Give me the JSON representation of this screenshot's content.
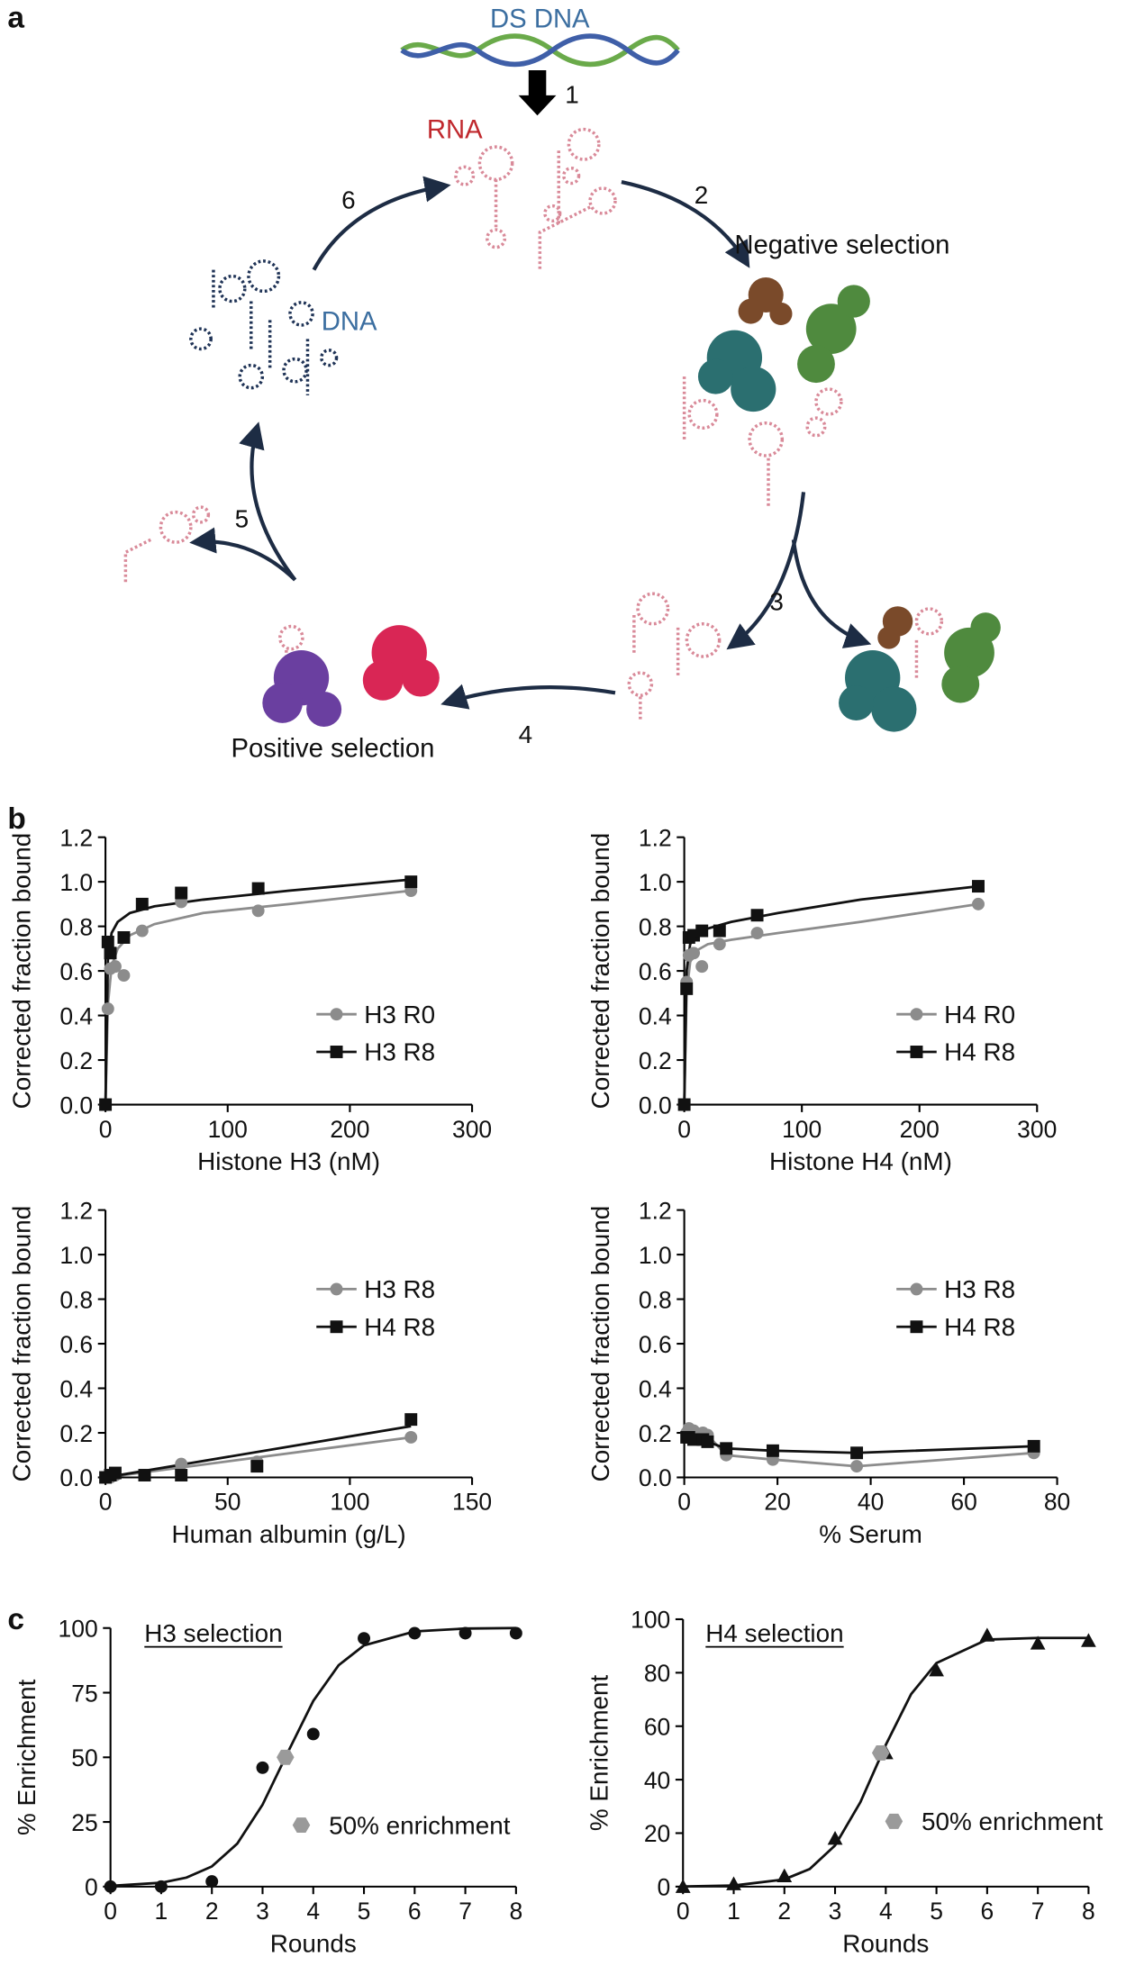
{
  "diagram": {
    "panel_labels": [
      "a",
      "b",
      "c"
    ],
    "nodes": [
      {
        "label": "DS DNA"
      },
      {
        "label": "1"
      },
      {
        "label": "RNA"
      },
      {
        "label": "2"
      },
      {
        "label": "Negative selection"
      },
      {
        "label": "6"
      },
      {
        "label": "DNA"
      },
      {
        "label": "5"
      },
      {
        "label": "3"
      },
      {
        "label": "4"
      },
      {
        "label": "Positive selection"
      }
    ]
  },
  "chart_data": [
    {
      "type": "scatter",
      "xlabel": "Histone H3 (nM)",
      "ylabel": "Corrected fraction bound",
      "xlim": [
        0,
        300
      ],
      "xticks": [
        0,
        100,
        200,
        300
      ],
      "ylim": [
        0,
        1.2
      ],
      "yticks": [
        {
          "value": 0,
          "label": "0.0"
        },
        0.2,
        0.4,
        0.6,
        0.8,
        {
          "value": 1,
          "label": "1.0"
        },
        1.2
      ],
      "legend": "center-right",
      "series": [
        {
          "name": "H3 R0",
          "color": "#8c8c8c",
          "marker": "circle",
          "x": [
            0,
            2,
            4,
            8,
            15,
            30,
            62,
            125,
            250
          ],
          "values": [
            0,
            0.43,
            0.61,
            0.62,
            0.58,
            0.78,
            0.91,
            0.87,
            0.96
          ],
          "fit_x": [
            0,
            2,
            5,
            10,
            20,
            40,
            80,
            150,
            250
          ],
          "fit_values": [
            0,
            0.45,
            0.62,
            0.7,
            0.76,
            0.81,
            0.86,
            0.9,
            0.96
          ]
        },
        {
          "name": "H3 R8",
          "color": "#111111",
          "marker": "square",
          "x": [
            0,
            2,
            4,
            15,
            30,
            62,
            125,
            250
          ],
          "values": [
            0,
            0.73,
            0.68,
            0.75,
            0.9,
            0.95,
            0.97,
            1.0
          ],
          "fit_x": [
            0,
            2,
            5,
            10,
            20,
            40,
            80,
            150,
            250
          ],
          "fit_values": [
            0,
            0.65,
            0.77,
            0.82,
            0.86,
            0.89,
            0.92,
            0.96,
            1.01
          ]
        }
      ]
    },
    {
      "type": "scatter",
      "xlabel": "Histone H4 (nM)",
      "ylabel": "Corrected fraction bound",
      "xlim": [
        0,
        300
      ],
      "xticks": [
        0,
        100,
        200,
        300
      ],
      "ylim": [
        0,
        1.2
      ],
      "yticks": [
        {
          "value": 0,
          "label": "0.0"
        },
        0.2,
        0.4,
        0.6,
        0.8,
        {
          "value": 1,
          "label": "1.0"
        },
        1.2
      ],
      "legend": "center-right",
      "series": [
        {
          "name": "H4 R0",
          "color": "#8c8c8c",
          "marker": "circle",
          "x": [
            0,
            2,
            4,
            8,
            15,
            30,
            62,
            250
          ],
          "values": [
            0,
            0.55,
            0.67,
            0.68,
            0.62,
            0.72,
            0.77,
            0.9
          ],
          "fit_x": [
            0,
            2,
            5,
            10,
            20,
            40,
            80,
            150,
            250
          ],
          "fit_values": [
            0,
            0.5,
            0.64,
            0.69,
            0.72,
            0.74,
            0.77,
            0.82,
            0.9
          ]
        },
        {
          "name": "H4 R8",
          "color": "#111111",
          "marker": "square",
          "x": [
            0,
            2,
            4,
            8,
            15,
            30,
            62,
            250
          ],
          "values": [
            0,
            0.52,
            0.75,
            0.76,
            0.78,
            0.78,
            0.85,
            0.98
          ],
          "fit_x": [
            0,
            2,
            5,
            10,
            20,
            40,
            80,
            150,
            250
          ],
          "fit_values": [
            0,
            0.6,
            0.72,
            0.76,
            0.79,
            0.82,
            0.86,
            0.92,
            0.98
          ]
        }
      ]
    },
    {
      "type": "scatter",
      "xlabel": "Human albumin (g/L)",
      "ylabel": "Corrected fraction bound",
      "xlim": [
        0,
        150
      ],
      "xticks": [
        0,
        50,
        100,
        150
      ],
      "ylim": [
        0,
        1.2
      ],
      "yticks": [
        {
          "value": 0,
          "label": "0.0"
        },
        0.2,
        0.4,
        0.6,
        0.8,
        {
          "value": 1,
          "label": "1.0"
        },
        1.2
      ],
      "legend": "center-right",
      "series": [
        {
          "name": "H3 R8",
          "color": "#8c8c8c",
          "marker": "circle",
          "x": [
            0,
            2,
            4,
            16,
            31,
            62,
            125
          ],
          "values": [
            0,
            0,
            0.01,
            0.01,
            0.06,
            0.07,
            0.18
          ],
          "fit_x": [
            0,
            125
          ],
          "fit_values": [
            0,
            0.18
          ]
        },
        {
          "name": "H4 R8",
          "color": "#111111",
          "marker": "square",
          "x": [
            0,
            2,
            4,
            16,
            31,
            62,
            125
          ],
          "values": [
            0,
            0.01,
            0.02,
            0.01,
            0.01,
            0.05,
            0.26
          ],
          "fit_x": [
            0,
            125
          ],
          "fit_values": [
            0,
            0.23
          ]
        }
      ]
    },
    {
      "type": "scatter",
      "xlabel": "% Serum",
      "ylabel": "Corrected fraction bound",
      "xlim": [
        0,
        80
      ],
      "xticks": [
        0,
        20,
        40,
        60,
        80
      ],
      "ylim": [
        0,
        1.2
      ],
      "yticks": [
        {
          "value": 0,
          "label": "0.0"
        },
        0.2,
        0.4,
        0.6,
        0.8,
        {
          "value": 1,
          "label": "1.0"
        },
        1.2
      ],
      "legend": "center-right",
      "connect": true,
      "series": [
        {
          "name": "H3 R8",
          "color": "#8c8c8c",
          "marker": "circle",
          "x": [
            0.5,
            1,
            2,
            4,
            5,
            9,
            19,
            37,
            75
          ],
          "values": [
            0.2,
            0.22,
            0.21,
            0.2,
            0.19,
            0.1,
            0.08,
            0.05,
            0.11
          ]
        },
        {
          "name": "H4 R8",
          "color": "#111111",
          "marker": "square",
          "x": [
            0.5,
            1,
            2,
            4,
            5,
            9,
            19,
            37,
            75
          ],
          "values": [
            0.18,
            0.18,
            0.17,
            0.17,
            0.16,
            0.13,
            0.12,
            0.11,
            0.14
          ]
        }
      ]
    },
    {
      "type": "scatter",
      "title": "H3 selection",
      "xlabel": "Rounds",
      "ylabel": "% Enrichment",
      "xlim": [
        0,
        8
      ],
      "xticks": [
        0,
        1,
        2,
        3,
        4,
        5,
        6,
        7,
        8
      ],
      "ylim": [
        0,
        100
      ],
      "yticks": [
        0,
        25,
        50,
        75,
        100
      ],
      "legend": "lower-right",
      "series": [
        {
          "color": "#111111",
          "marker": "circle",
          "x": [
            0,
            1,
            2,
            3,
            4,
            5,
            6,
            7,
            8
          ],
          "values": [
            0,
            0,
            2,
            46,
            59,
            96,
            98,
            98,
            98
          ],
          "fit_x": [
            0,
            1,
            1.5,
            2,
            2.5,
            3,
            3.5,
            4,
            4.5,
            5,
            6,
            7,
            8
          ],
          "fit_values": [
            0.3,
            1.5,
            3.5,
            7.8,
            16.6,
            31.7,
            52,
            71.8,
            85.6,
            93.3,
            98.7,
            99.8,
            100
          ]
        },
        {
          "name": "50% enrichment",
          "color": "#9a9a9a",
          "marker": "hexagon",
          "x": [
            3.45
          ],
          "values": [
            50
          ]
        }
      ]
    },
    {
      "type": "scatter",
      "title": "H4 selection",
      "xlabel": "Rounds",
      "ylabel": "% Enrichment",
      "xlim": [
        0,
        8
      ],
      "xticks": [
        0,
        1,
        2,
        3,
        4,
        5,
        6,
        7,
        8
      ],
      "ylim": [
        0,
        100
      ],
      "yticks": [
        0,
        20,
        40,
        60,
        80,
        100
      ],
      "legend": "lower-right",
      "series": [
        {
          "color": "#111111",
          "marker": "triangle",
          "x": [
            0,
            1,
            2,
            3,
            4,
            5,
            6,
            7,
            8
          ],
          "values": [
            0,
            1,
            4,
            18,
            50,
            81,
            94,
            91,
            92
          ],
          "fit_x": [
            0,
            1,
            2,
            2.5,
            3,
            3.5,
            4,
            4.5,
            5,
            6,
            7,
            8
          ],
          "fit_values": [
            0.06,
            0.4,
            2.7,
            6.6,
            15.4,
            31.6,
            53,
            72,
            83.6,
            92.4,
            93,
            93
          ]
        },
        {
          "name": "50% enrichment",
          "color": "#9a9a9a",
          "marker": "hexagon",
          "x": [
            3.9
          ],
          "values": [
            50
          ]
        }
      ]
    }
  ]
}
